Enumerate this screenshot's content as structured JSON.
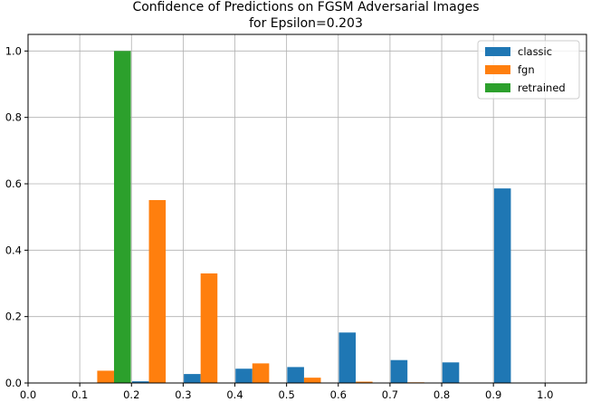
{
  "chart_data": {
    "type": "bar",
    "title": "Confidence of Predictions on FGSM Adversarial Images",
    "subtitle": "for Epsilon=0.203",
    "xlabel": "",
    "ylabel": "",
    "xlim": [
      0,
      1.08
    ],
    "ylim": [
      0,
      1.05
    ],
    "xticks": [
      0.0,
      0.1,
      0.2,
      0.3,
      0.4,
      0.5,
      0.6,
      0.7,
      0.8,
      0.9,
      1.0
    ],
    "xtick_labels": [
      "0.0",
      "0.1",
      "0.2",
      "0.3",
      "0.4",
      "0.5",
      "0.6",
      "0.7",
      "0.8",
      "0.9",
      "1.0"
    ],
    "yticks": [
      0.0,
      0.2,
      0.4,
      0.6,
      0.8,
      1.0
    ],
    "ytick_labels": [
      "0.0",
      "0.2",
      "0.4",
      "0.6",
      "0.8",
      "1.0"
    ],
    "grid": true,
    "legend_position": "top-right",
    "bar_width": 0.0325,
    "bins": [
      0.05,
      0.15,
      0.25,
      0.35,
      0.45,
      0.55,
      0.65,
      0.75,
      0.85,
      0.95
    ],
    "series": [
      {
        "name": "classic",
        "color": "#1f77b4",
        "offset": -1,
        "values": [
          0,
          0,
          0.005,
          0.027,
          0.043,
          0.048,
          0.152,
          0.069,
          0.062,
          0.586
        ]
      },
      {
        "name": "fgn",
        "color": "#ff7f0e",
        "offset": 0,
        "values": [
          0,
          0.037,
          0.551,
          0.33,
          0.059,
          0.016,
          0.004,
          0.002,
          0,
          0
        ]
      },
      {
        "name": "retrained",
        "color": "#2ca02c",
        "offset": 1,
        "values": [
          0,
          1.0,
          0,
          0,
          0,
          0,
          0,
          0,
          0,
          0
        ]
      }
    ]
  }
}
